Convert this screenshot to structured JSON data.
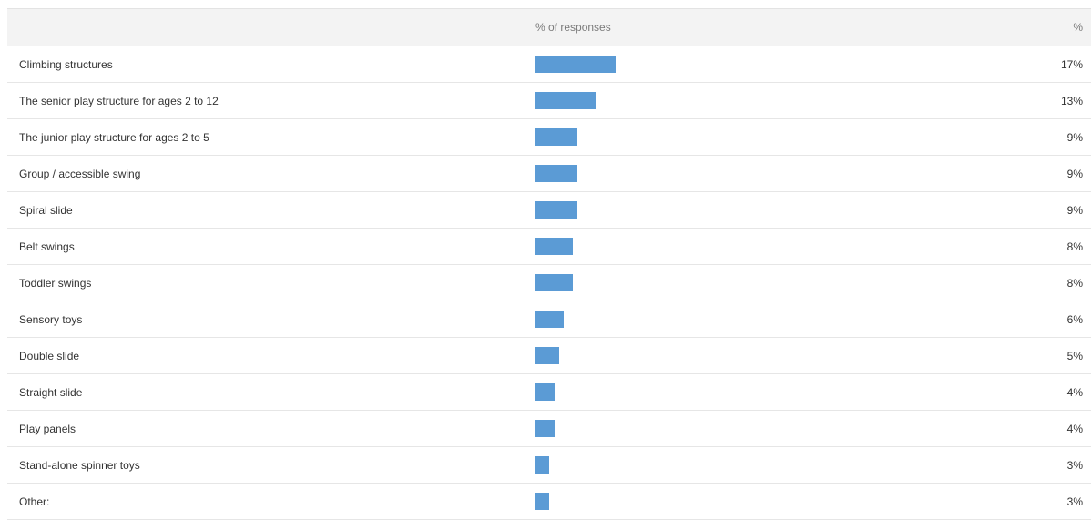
{
  "table": {
    "header": {
      "label_col": "",
      "bar_col": "% of responses",
      "pct_col": "%"
    },
    "bar_color": "#5b9bd5",
    "header_bg": "#f3f3f3"
  },
  "chart_data": {
    "type": "bar",
    "orientation": "horizontal",
    "categories": [
      "Climbing structures",
      "The senior play structure for ages 2 to 12",
      "The junior play structure for ages 2 to 5",
      "Group / accessible swing",
      "Spiral slide",
      "Belt swings",
      "Toddler swings",
      "Sensory toys",
      "Double slide",
      "Straight slide",
      "Play panels",
      "Stand-alone spinner toys",
      "Other:"
    ],
    "values": [
      17,
      13,
      9,
      9,
      9,
      8,
      8,
      6,
      5,
      4,
      4,
      3,
      3
    ],
    "value_labels": [
      "17%",
      "13%",
      "9%",
      "9%",
      "9%",
      "8%",
      "8%",
      "6%",
      "5%",
      "4%",
      "4%",
      "3%",
      "3%"
    ],
    "xlabel": "% of responses",
    "ylabel": "",
    "xlim": [
      0,
      100
    ],
    "grid": false,
    "legend": "none"
  }
}
